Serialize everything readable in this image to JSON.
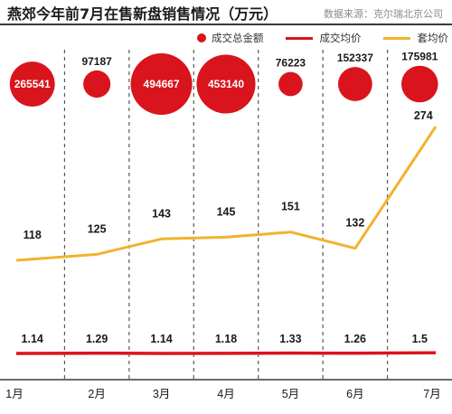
{
  "header": {
    "title": "燕郊今年前7月在售新盘销售情况（万元）",
    "source": "数据来源：克尔瑞北京公司"
  },
  "legend": [
    {
      "label": "成交总金额",
      "kind": "dot"
    },
    {
      "label": "成交均价",
      "kind": "line"
    },
    {
      "label": "套均价",
      "kind": "line"
    }
  ],
  "colors": {
    "total_amount": "#d9141c",
    "avg_price": "#d9141c",
    "avg_per_unit": "#f0b42e",
    "grid": "#5a5a5a",
    "text": "#1a1a1a"
  },
  "chart_data": {
    "type": "line",
    "categories": [
      "1月",
      "2月",
      "3月",
      "4月",
      "5月",
      "6月",
      "7月"
    ],
    "series": [
      {
        "name": "成交总金额",
        "mark": "bubble",
        "values": [
          265541,
          97187,
          494667,
          453140,
          76223,
          152337,
          175981
        ]
      },
      {
        "name": "成交均价",
        "mark": "line",
        "values": [
          1.14,
          1.29,
          1.14,
          1.18,
          1.33,
          1.26,
          1.5
        ]
      },
      {
        "name": "套均价",
        "mark": "line",
        "values": [
          118,
          125,
          143,
          145,
          151,
          132,
          274
        ]
      }
    ],
    "grid": "dashed vertical separators",
    "legend_position": "top"
  }
}
